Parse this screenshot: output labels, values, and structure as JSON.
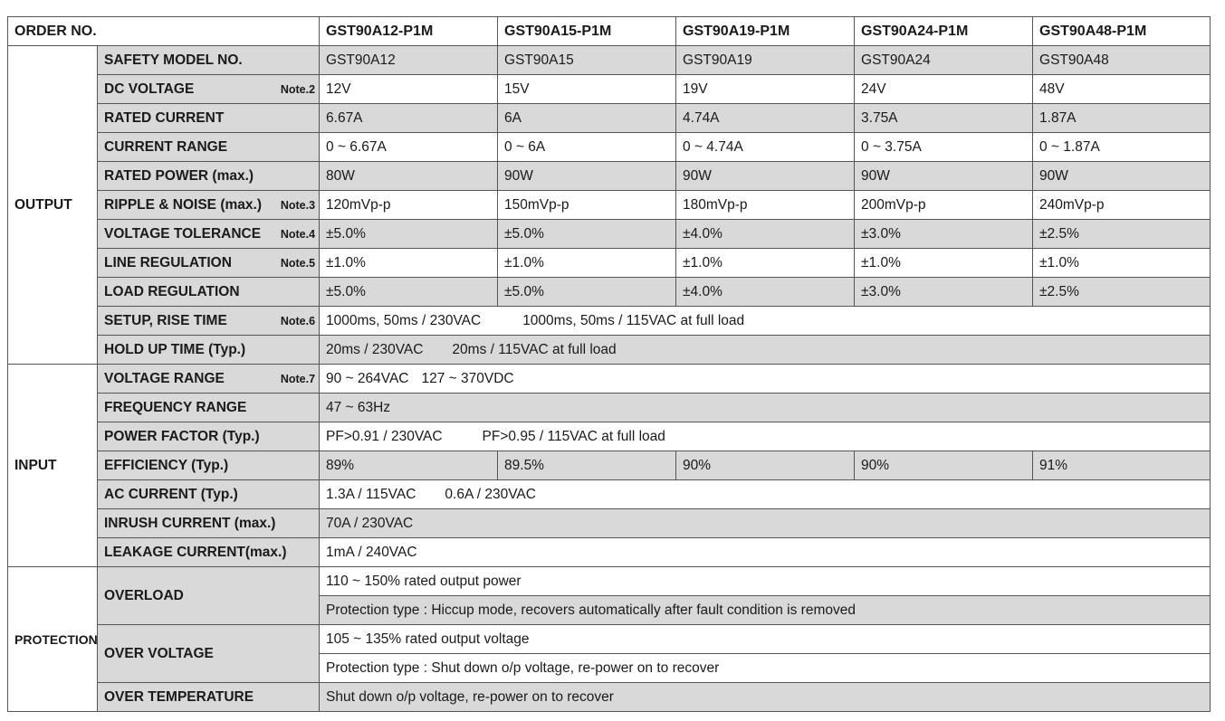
{
  "header": {
    "order_no_label": "ORDER NO.",
    "models": [
      "GST90A12-P1M",
      "GST90A15-P1M",
      "GST90A19-P1M",
      "GST90A24-P1M",
      "GST90A48-P1M"
    ]
  },
  "output": {
    "group_label": "OUTPUT",
    "safety_model": {
      "label": "SAFETY MODEL NO.",
      "values": [
        "GST90A12",
        "GST90A15",
        "GST90A19",
        "GST90A24",
        "GST90A48"
      ]
    },
    "dc_voltage": {
      "label": "DC VOLTAGE",
      "note": "Note.2",
      "values": [
        "12V",
        "15V",
        "19V",
        "24V",
        "48V"
      ]
    },
    "rated_current": {
      "label": "RATED CURRENT",
      "values": [
        "6.67A",
        "6A",
        "4.74A",
        "3.75A",
        "1.87A"
      ]
    },
    "current_range": {
      "label": "CURRENT RANGE",
      "values": [
        "0 ~ 6.67A",
        "0 ~ 6A",
        "0 ~ 4.74A",
        "0 ~ 3.75A",
        "0 ~ 1.87A"
      ]
    },
    "rated_power": {
      "label": "RATED POWER (max.)",
      "values": [
        "80W",
        "90W",
        "90W",
        "90W",
        "90W"
      ]
    },
    "ripple_noise": {
      "label": "RIPPLE & NOISE (max.)",
      "note": "Note.3",
      "values": [
        "120mVp-p",
        "150mVp-p",
        "180mVp-p",
        "200mVp-p",
        "240mVp-p"
      ]
    },
    "voltage_tolerance": {
      "label": "VOLTAGE TOLERANCE",
      "note": "Note.4",
      "values": [
        "±5.0%",
        "±5.0%",
        "±4.0%",
        "±3.0%",
        "±2.5%"
      ]
    },
    "line_regulation": {
      "label": "LINE REGULATION",
      "note": "Note.5",
      "values": [
        "±1.0%",
        "±1.0%",
        "±1.0%",
        "±1.0%",
        "±1.0%"
      ]
    },
    "load_regulation": {
      "label": "LOAD REGULATION",
      "values": [
        "±5.0%",
        "±5.0%",
        "±4.0%",
        "±3.0%",
        "±2.5%"
      ]
    },
    "setup_rise": {
      "label": "SETUP, RISE TIME",
      "note": "Note.6",
      "value_a": "1000ms, 50ms / 230VAC",
      "value_b": "1000ms, 50ms / 115VAC  at full load"
    },
    "hold_up": {
      "label": "HOLD UP TIME (Typ.)",
      "value_a": "20ms / 230VAC",
      "value_b": "20ms / 115VAC  at full load"
    }
  },
  "input": {
    "group_label": "INPUT",
    "voltage_range": {
      "label": "VOLTAGE RANGE",
      "note": "Note.7",
      "value_a": "90 ~ 264VAC",
      "value_b": "127 ~ 370VDC"
    },
    "frequency_range": {
      "label": "FREQUENCY RANGE",
      "value": "47 ~ 63Hz"
    },
    "power_factor": {
      "label": "POWER FACTOR (Typ.)",
      "value_a": "PF>0.91 / 230VAC",
      "value_b": "PF>0.95 / 115VAC at full load"
    },
    "efficiency": {
      "label": "EFFICIENCY (Typ.)",
      "values": [
        "89%",
        "89.5%",
        "90%",
        "90%",
        "91%"
      ]
    },
    "ac_current": {
      "label": "AC CURRENT (Typ.)",
      "value_a": "1.3A / 115VAC",
      "value_b": "0.6A / 230VAC"
    },
    "inrush_current": {
      "label": "INRUSH CURRENT (max.)",
      "value": "70A / 230VAC"
    },
    "leakage_current": {
      "label": "LEAKAGE CURRENT(max.)",
      "value": "1mA / 240VAC"
    }
  },
  "protection": {
    "group_label": "PROTECTION",
    "overload": {
      "label": "OVERLOAD",
      "line1": "110 ~ 150%  rated output power",
      "line2": "Protection type : Hiccup mode, recovers automatically after fault condition is removed"
    },
    "over_voltage": {
      "label": "OVER VOLTAGE",
      "line1": "105 ~ 135% rated output voltage",
      "line2": "Protection type : Shut down o/p voltage, re-power on to recover"
    },
    "over_temperature": {
      "label": "OVER TEMPERATURE",
      "value": "Shut down o/p voltage, re-power on to recover"
    }
  }
}
